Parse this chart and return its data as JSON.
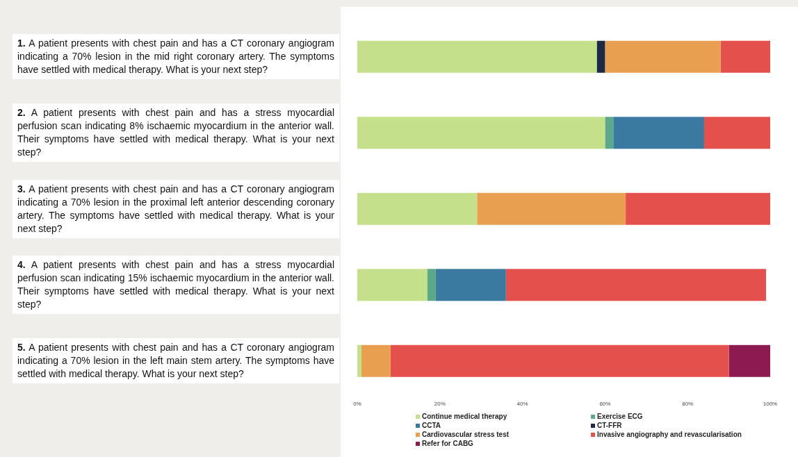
{
  "chart_data": {
    "type": "bar",
    "orientation": "horizontal",
    "stacked": true,
    "legend": "bottom",
    "grid": false,
    "categories": [
      "1. A patient presents with chest pain and has a CT coronary angiogram indicating a 70% lesion in the mid right coronary artery. The symptoms have settled with medical therapy. What is your next step?",
      "2. A patient presents with chest pain and has a stress myocardial perfusion scan indicating 8% ischaemic myocardium in the anterior wall. Their symptoms have settled with medical therapy. What is your next step?",
      "3. A patient presents with chest pain and has a CT coronary angiogram indicating a 70% lesion in the proximal left anterior descending coronary artery. The symptoms have settled with medical therapy. What is your next step?",
      "4. A patient presents with chest pain and has a stress myocardial perfusion scan indicating 15% ischaemic myocardium in the anterior wall. Their symptoms have settled with medical therapy. What is your next step?",
      "5. A patient presents with chest pain and has a CT coronary angiogram indicating a 70% lesion in the left main stem artery. The symptoms have settled with medical therapy. What is your next step?"
    ],
    "series": [
      {
        "name": "Continue medical therapy",
        "color": "#c5e08a",
        "values": [
          58,
          60,
          29,
          17,
          1
        ]
      },
      {
        "name": "Exercise ECG",
        "color": "#5ba88a",
        "values": [
          0,
          2,
          0,
          2,
          0
        ]
      },
      {
        "name": "CCTA",
        "color": "#3b7aa0",
        "values": [
          0,
          22,
          0,
          17,
          0
        ]
      },
      {
        "name": "CT-FFR",
        "color": "#1c2a45",
        "values": [
          2,
          0,
          0,
          0,
          0
        ]
      },
      {
        "name": "Cardiovascular stress test",
        "color": "#e8a050",
        "values": [
          28,
          0,
          36,
          0,
          7
        ]
      },
      {
        "name": "Invasive angiography and revascularisation",
        "color": "#e4514c",
        "values": [
          12,
          16,
          35,
          63,
          82
        ]
      },
      {
        "name": "Refer for CABG",
        "color": "#8e1a52",
        "values": [
          0,
          0,
          0,
          0,
          10
        ]
      }
    ],
    "xlim": [
      0,
      100
    ],
    "xticks": [
      {
        "value": 0,
        "label": "0%"
      },
      {
        "value": 20,
        "label": "20%"
      },
      {
        "value": 40,
        "label": "40%"
      },
      {
        "value": 60,
        "label": "60%"
      },
      {
        "value": 80,
        "label": "80%"
      },
      {
        "value": 100,
        "label": "100%"
      }
    ]
  }
}
